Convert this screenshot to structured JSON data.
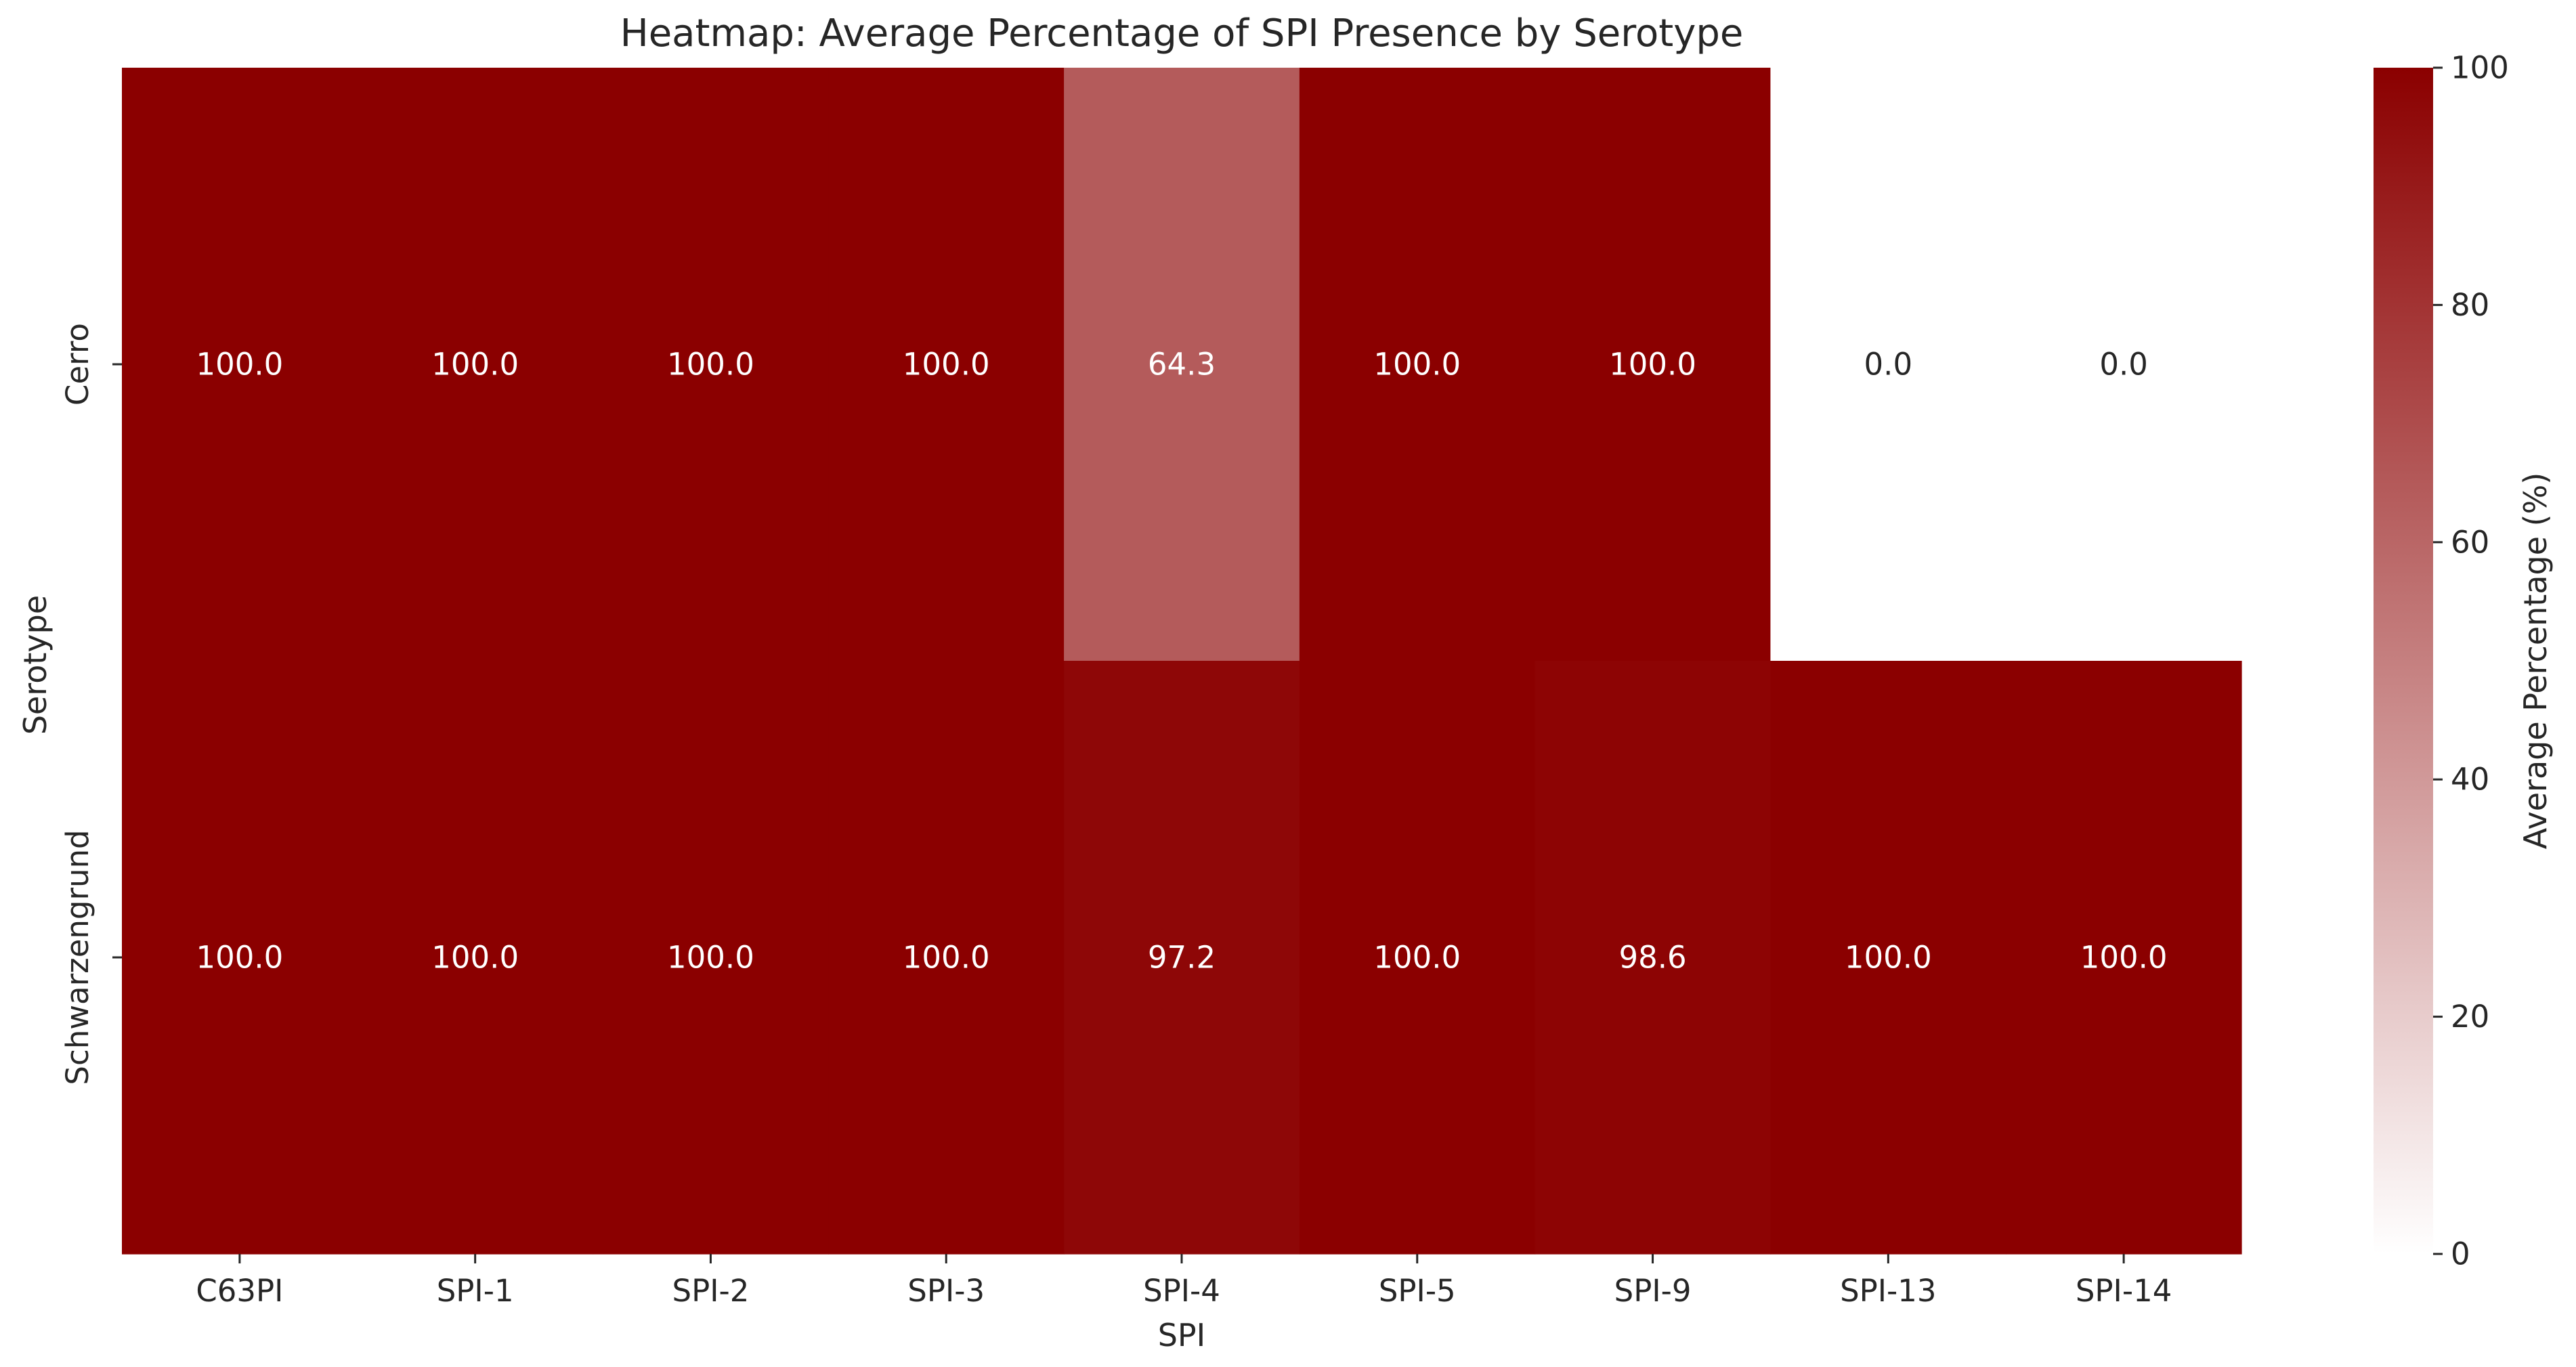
{
  "chart_data": {
    "type": "heatmap",
    "title": "Heatmap: Average Percentage of SPI Presence by Serotype",
    "xlabel": "SPI",
    "ylabel": "Serotype",
    "x_categories": [
      "C63PI",
      "SPI-1",
      "SPI-2",
      "SPI-3",
      "SPI-4",
      "SPI-5",
      "SPI-9",
      "SPI-13",
      "SPI-14"
    ],
    "y_categories": [
      "Cerro",
      "Schwarzengrund"
    ],
    "values": [
      [
        100.0,
        100.0,
        100.0,
        100.0,
        64.3,
        100.0,
        100.0,
        0.0,
        0.0
      ],
      [
        100.0,
        100.0,
        100.0,
        100.0,
        97.2,
        100.0,
        98.6,
        100.0,
        100.0
      ]
    ],
    "value_labels": [
      [
        "100.0",
        "100.0",
        "100.0",
        "100.0",
        "64.3",
        "100.0",
        "100.0",
        "0.0",
        "0.0"
      ],
      [
        "100.0",
        "100.0",
        "100.0",
        "100.0",
        "97.2",
        "100.0",
        "98.6",
        "100.0",
        "100.0"
      ]
    ],
    "colorbar": {
      "label": "Average Percentage (%)",
      "range": [
        0,
        100
      ],
      "ticks": [
        0,
        20,
        40,
        60,
        80,
        100
      ],
      "tick_labels": [
        "0",
        "20",
        "40",
        "60",
        "80",
        "100"
      ],
      "color_low": "#ffffff",
      "color_high": "#8b0000"
    },
    "grid": false
  }
}
